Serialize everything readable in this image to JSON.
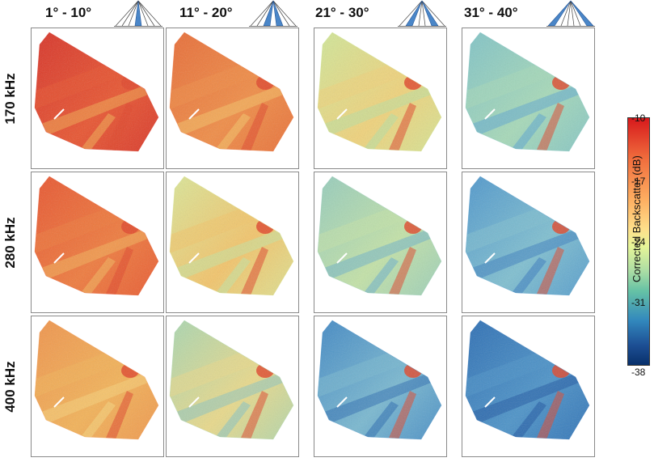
{
  "columns": [
    {
      "label": "1° - 10°"
    },
    {
      "label": "11° - 20°"
    },
    {
      "label": "21° - 30°"
    },
    {
      "label": "31° - 40°"
    }
  ],
  "rows": [
    {
      "label": "170 kHz"
    },
    {
      "label": "280 kHz"
    },
    {
      "label": "400 kHz"
    }
  ],
  "colorbar": {
    "title": "Corrected Backscatter (dB)",
    "ticks": [
      "-10",
      "-17",
      "-24",
      "-31",
      "-38"
    ],
    "min": -38,
    "max": -10
  },
  "panels": [
    {
      "row": 0,
      "col": 0,
      "base": "#d73127",
      "mid": "#e8542f",
      "low": "#f2a54e"
    },
    {
      "row": 0,
      "col": 1,
      "base": "#e86a35",
      "mid": "#f08c45",
      "low": "#f5c064"
    },
    {
      "row": 0,
      "col": 2,
      "base": "#cfe89a",
      "mid": "#f0d27a",
      "low": "#b9e0a0"
    },
    {
      "row": 0,
      "col": 3,
      "base": "#7ec2c7",
      "mid": "#a6d9b8",
      "low": "#5fa8cf"
    },
    {
      "row": 1,
      "col": 0,
      "base": "#e8532e",
      "mid": "#ef7a3c",
      "low": "#f4b15a"
    },
    {
      "row": 1,
      "col": 1,
      "base": "#d9e89a",
      "mid": "#f3c46a",
      "low": "#c4e3a0"
    },
    {
      "row": 1,
      "col": 2,
      "base": "#93cbbd",
      "mid": "#c3e2a7",
      "low": "#6fb3c9"
    },
    {
      "row": 1,
      "col": 3,
      "base": "#4c95cc",
      "mid": "#7fbfd0",
      "low": "#3c7fbf"
    },
    {
      "row": 2,
      "col": 0,
      "base": "#f0924a",
      "mid": "#f3b257",
      "low": "#f7d27a"
    },
    {
      "row": 2,
      "col": 1,
      "base": "#a6d6b2",
      "mid": "#e9d98a",
      "low": "#8cc5c0"
    },
    {
      "row": 2,
      "col": 2,
      "base": "#3e86c4",
      "mid": "#79b8d0",
      "low": "#2f6fb3"
    },
    {
      "row": 2,
      "col": 3,
      "base": "#2a6cb3",
      "mid": "#4c93c8",
      "low": "#1f58a3"
    }
  ],
  "hotspot_color": "#e0462a"
}
